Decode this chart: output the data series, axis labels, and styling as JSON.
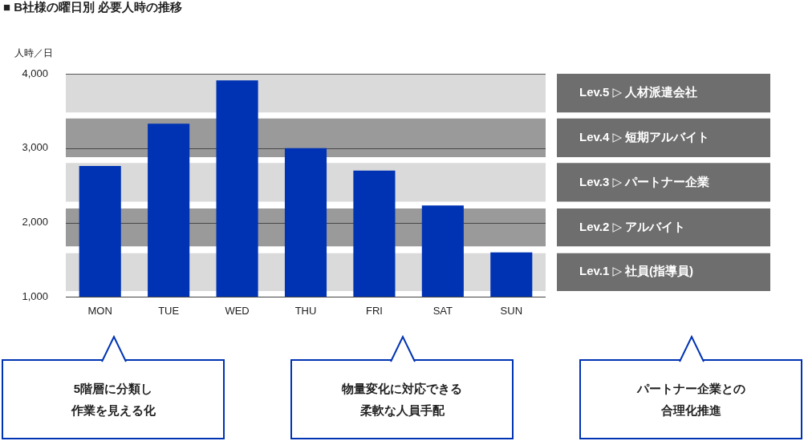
{
  "chart_data": {
    "type": "bar",
    "title": "■ B社様の曜日別 必要人時の推移",
    "ylabel": "人時／日",
    "categories": [
      "MON",
      "TUE",
      "WED",
      "THU",
      "FRI",
      "SAT",
      "SUN"
    ],
    "values": [
      2760,
      3330,
      3910,
      3000,
      2700,
      2230,
      1600
    ],
    "color": "#0033b3",
    "ylim": [
      1000,
      4000
    ],
    "yticks": [
      {
        "value": 1000,
        "label": "1,000"
      },
      {
        "value": 2000,
        "label": "2,000"
      },
      {
        "value": 3000,
        "label": "3,000"
      },
      {
        "value": 4000,
        "label": "4,000"
      }
    ],
    "grid": "y",
    "legend": false,
    "bands": [
      {
        "axis": "y",
        "from": 3480,
        "to": 4000,
        "label": "Lev.5 ▷ 人材派遣会社",
        "color": "#dadada"
      },
      {
        "axis": "y",
        "from": 2880,
        "to": 3400,
        "label": "Lev.4 ▷ 短期アルバイト",
        "color": "#9a9a9a"
      },
      {
        "axis": "y",
        "from": 2280,
        "to": 2800,
        "label": "Lev.3 ▷ パートナー企業",
        "color": "#dadada"
      },
      {
        "axis": "y",
        "from": 1680,
        "to": 2190,
        "label": "Lev.2 ▷ アルバイト",
        "color": "#9a9a9a"
      },
      {
        "axis": "y",
        "from": 1080,
        "to": 1590,
        "label": "Lev.1 ▷ 社員(指導員)",
        "color": "#dadada"
      }
    ],
    "annotations": [
      "5階層に分類し作業を見える化",
      "物量変化に対応できる柔軟な人員手配",
      "パートナー企業との合理化推進"
    ]
  }
}
